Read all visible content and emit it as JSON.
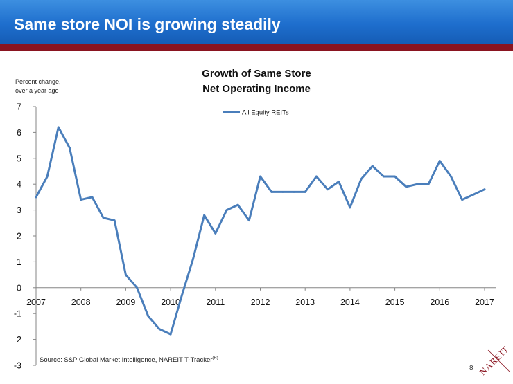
{
  "header": {
    "title": "Same store NOI is growing steadily"
  },
  "chart_data": {
    "type": "line",
    "title": "Growth of Same Store\nNet Operating Income",
    "title_lines": [
      "Growth of Same Store",
      "Net Operating Income"
    ],
    "ylabel_lines": [
      "Percent change,",
      "over a year ago"
    ],
    "xlabel": "",
    "ylim": [
      -3,
      7
    ],
    "yticks": [
      7,
      6,
      5,
      4,
      3,
      2,
      1,
      0,
      -1,
      -2,
      -3
    ],
    "xlim": [
      2007,
      2017.25
    ],
    "xticks": [
      "2007",
      "2008",
      "2009",
      "2010",
      "2011",
      "2012",
      "2013",
      "2014",
      "2015",
      "2016",
      "2017"
    ],
    "grid": false,
    "legend_position": "top-center",
    "series": [
      {
        "name": "All Equity REITs",
        "color": "#4a7ebb",
        "x": [
          2007.0,
          2007.25,
          2007.5,
          2007.75,
          2008.0,
          2008.25,
          2008.5,
          2008.75,
          2009.0,
          2009.25,
          2009.5,
          2009.75,
          2010.0,
          2010.25,
          2010.5,
          2010.75,
          2011.0,
          2011.25,
          2011.5,
          2011.75,
          2012.0,
          2012.25,
          2012.5,
          2012.75,
          2013.0,
          2013.25,
          2013.5,
          2013.75,
          2014.0,
          2014.25,
          2014.5,
          2014.75,
          2015.0,
          2015.25,
          2015.5,
          2015.75,
          2016.0,
          2016.25,
          2016.5,
          2016.75,
          2017.0
        ],
        "values": [
          3.5,
          4.3,
          6.2,
          5.4,
          3.4,
          3.5,
          2.7,
          2.6,
          0.5,
          0.0,
          -1.1,
          -1.6,
          -1.8,
          -0.3,
          1.1,
          2.8,
          2.1,
          3.0,
          3.2,
          2.6,
          4.3,
          3.7,
          3.7,
          3.7,
          3.7,
          4.3,
          3.8,
          4.1,
          3.1,
          4.2,
          4.7,
          4.3,
          4.3,
          3.9,
          4.0,
          4.0,
          4.9,
          4.3,
          3.4,
          3.6,
          3.8
        ]
      }
    ],
    "source": "Source: S&P Global Market Intelligence, NAREIT T-Tracker",
    "source_sup": "(R)"
  },
  "footer": {
    "page_number": "8"
  },
  "logo": {
    "text": "NAREIT",
    "color": "#8a1420"
  }
}
